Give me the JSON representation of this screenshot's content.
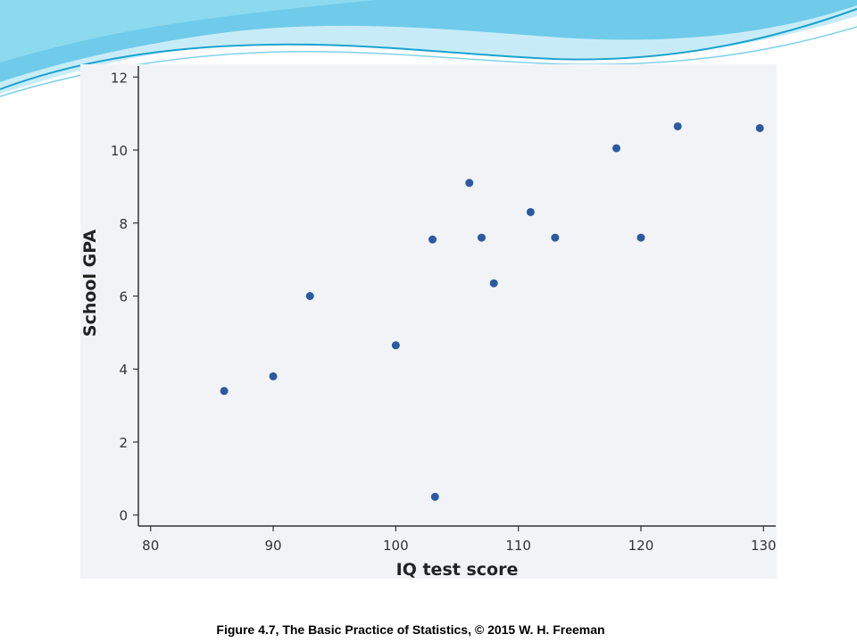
{
  "caption": "Figure 4.7, The Basic Practice of Statistics, © 2015 W. H. Freeman",
  "colors": {
    "panel_background": "#f2f3f7",
    "point": "#2a5aa0",
    "axis": "#333333",
    "banner_light": "#c8ecf7",
    "banner_mid": "#5fc6e6",
    "banner_dark": "#1aa3cf"
  },
  "chart_data": {
    "type": "scatter",
    "title": "",
    "xlabel": "IQ test score",
    "ylabel": "School GPA",
    "xlim": [
      79,
      131
    ],
    "ylim": [
      -0.3,
      12.3
    ],
    "xticks": [
      80,
      90,
      100,
      110,
      120,
      130
    ],
    "yticks": [
      0,
      2,
      4,
      6,
      8,
      10,
      12
    ],
    "grid": false,
    "legend": "none",
    "series": [
      {
        "x": [
          86,
          90,
          93,
          100,
          103,
          103.2,
          106,
          107,
          108,
          111,
          113,
          118,
          120,
          123,
          129.7
        ],
        "y": [
          3.4,
          3.8,
          6.0,
          4.65,
          7.55,
          0.5,
          9.1,
          7.6,
          6.35,
          8.3,
          7.6,
          10.05,
          7.6,
          10.65,
          10.6
        ]
      }
    ]
  }
}
